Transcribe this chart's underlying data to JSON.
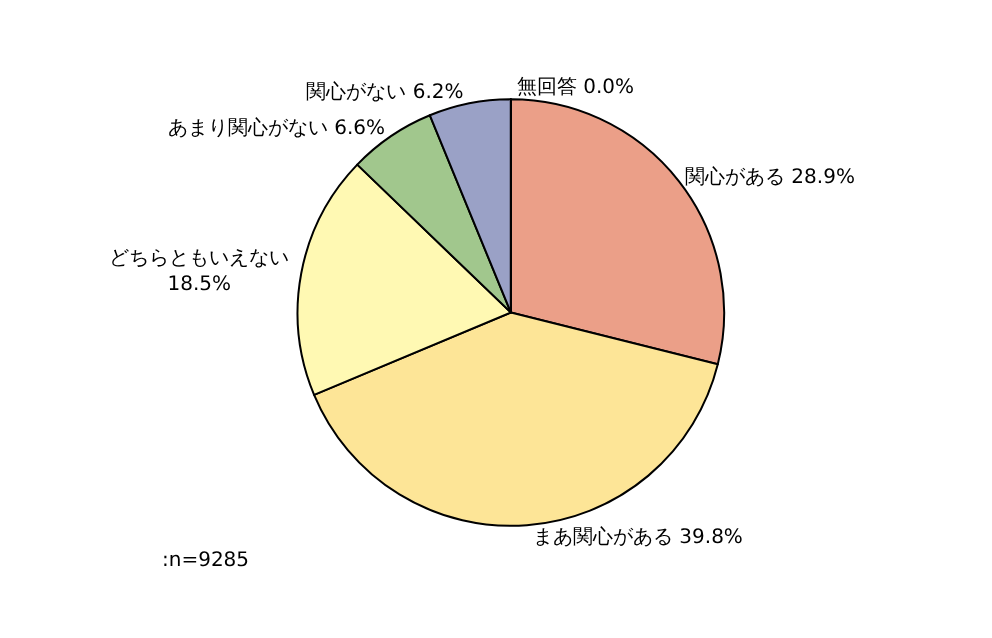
{
  "chart_data": {
    "type": "pie",
    "categories": [
      "関心がある",
      "まあ関心がある",
      "どちらともいえない",
      "あまり関心がない",
      "関心がない",
      "無回答"
    ],
    "values": [
      28.9,
      39.8,
      18.5,
      6.6,
      6.2,
      0.0
    ],
    "colors": [
      "#eb9f88",
      "#fde597",
      "#fff9b3",
      "#a1c78d",
      "#9aa1c6",
      "#ffffff"
    ],
    "value_labels": [
      "28.9%",
      "39.8%",
      "18.5%",
      "6.6%",
      "6.2%",
      "0.0%"
    ],
    "annotations": [
      ":n=9285"
    ],
    "legend": false
  }
}
